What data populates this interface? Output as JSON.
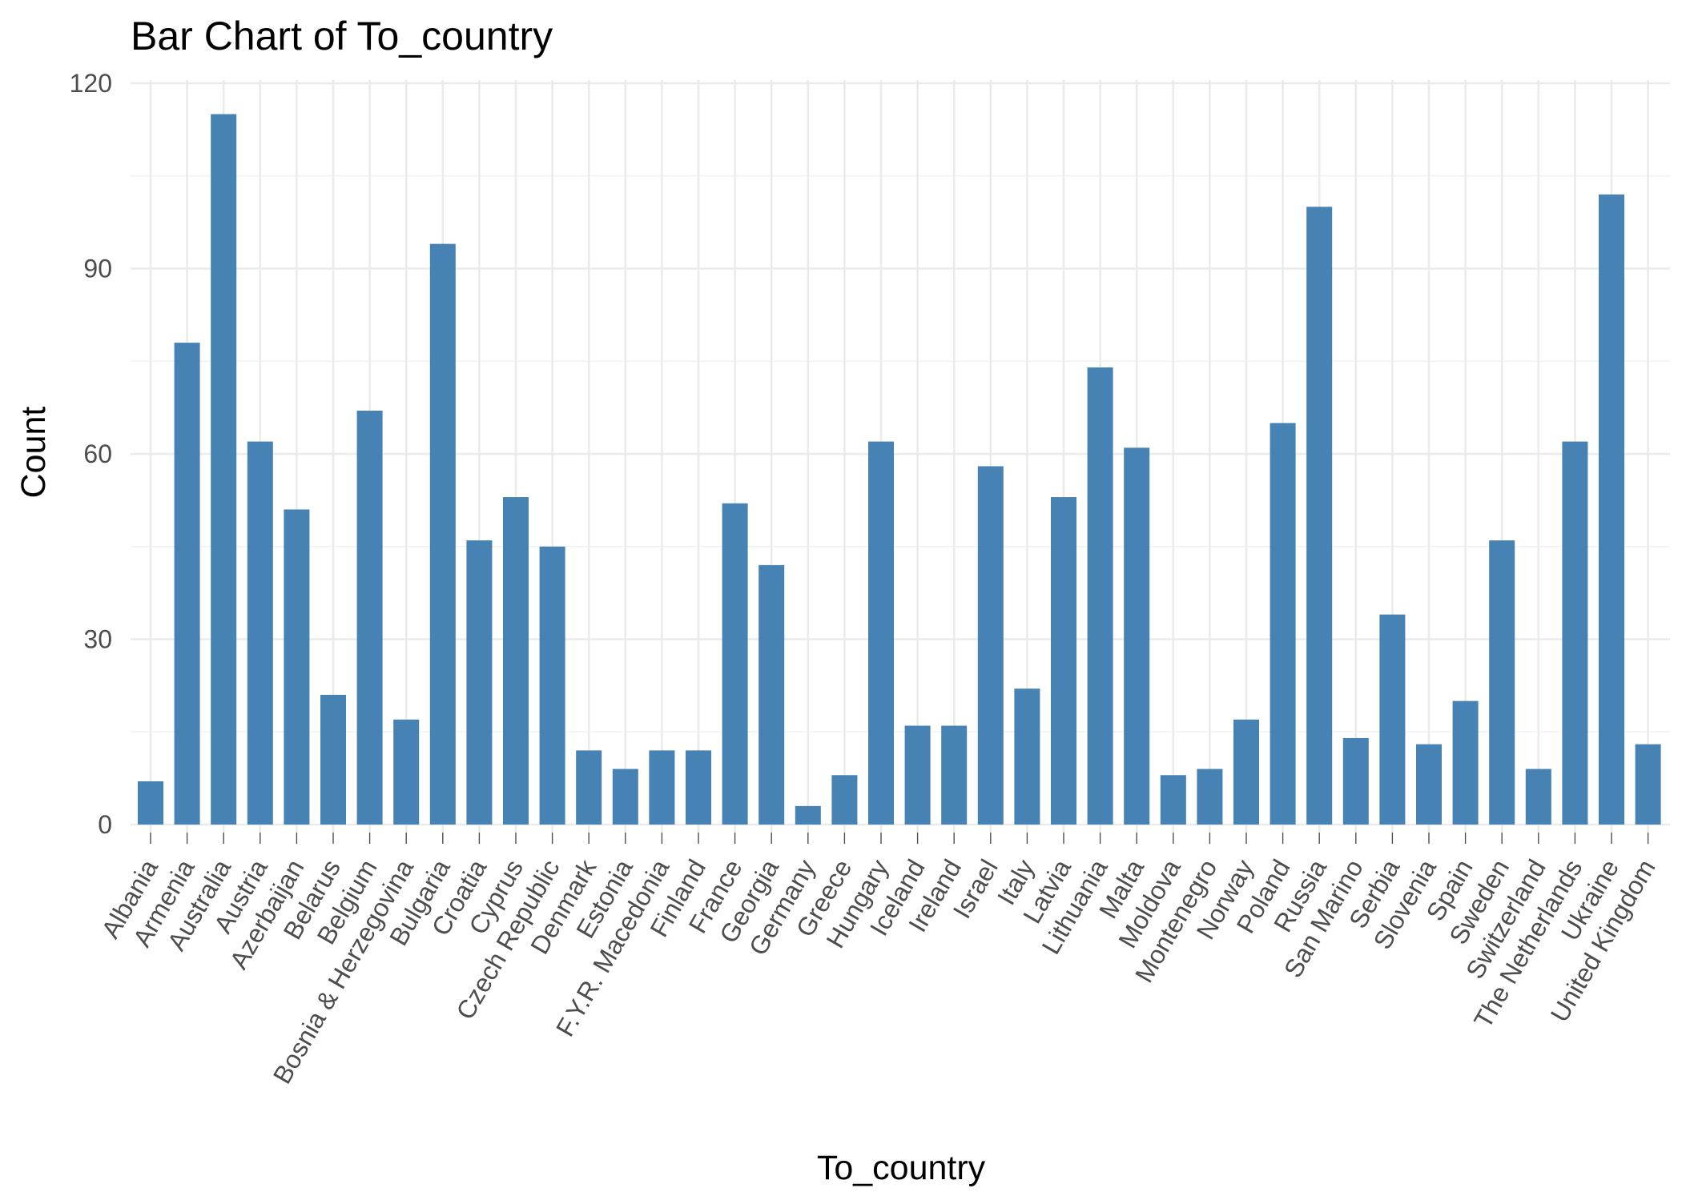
{
  "chart_data": {
    "type": "bar",
    "title": "Bar Chart of  To_country",
    "xlabel": "To_country",
    "ylabel": "Count",
    "ylim": [
      0,
      120
    ],
    "yticks": [
      0,
      30,
      60,
      90,
      120
    ],
    "grid": true,
    "legend": "none",
    "bar_color": "#4682b4",
    "categories": [
      "Albania",
      "Armenia",
      "Australia",
      "Austria",
      "Azerbaijan",
      "Belarus",
      "Belgium",
      "Bosnia & Herzegovina",
      "Bulgaria",
      "Croatia",
      "Cyprus",
      "Czech Republic",
      "Denmark",
      "Estonia",
      "F.Y.R. Macedonia",
      "Finland",
      "France",
      "Georgia",
      "Germany",
      "Greece",
      "Hungary",
      "Iceland",
      "Ireland",
      "Israel",
      "Italy",
      "Latvia",
      "Lithuania",
      "Malta",
      "Moldova",
      "Montenegro",
      "Norway",
      "Poland",
      "Russia",
      "San Marino",
      "Serbia",
      "Slovenia",
      "Spain",
      "Sweden",
      "Switzerland",
      "The Netherlands",
      "Ukraine",
      "United Kingdom"
    ],
    "values": [
      7,
      78,
      115,
      62,
      51,
      21,
      67,
      17,
      94,
      46,
      53,
      45,
      12,
      9,
      12,
      12,
      52,
      42,
      3,
      8,
      62,
      16,
      16,
      58,
      22,
      53,
      74,
      61,
      8,
      9,
      17,
      65,
      100,
      14,
      34,
      13,
      20,
      46,
      9,
      62,
      102,
      13
    ]
  }
}
